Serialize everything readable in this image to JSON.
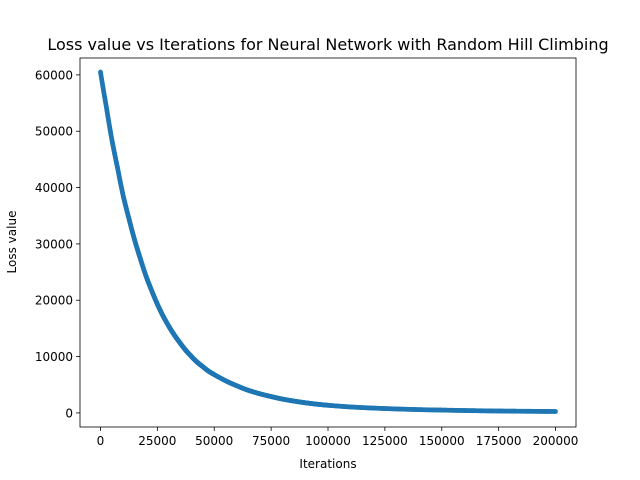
{
  "chart_data": {
    "type": "scatter",
    "title": "Loss value vs Iterations for Neural Network with Random Hill Climbing",
    "xlabel": "Iterations",
    "ylabel": "Loss value",
    "xlim": [
      -9000,
      209000
    ],
    "ylim": [
      -2500,
      63000
    ],
    "grid": false,
    "legend": "none",
    "marker_color": "#1f77b4",
    "x_ticks": [
      0,
      25000,
      50000,
      75000,
      100000,
      125000,
      150000,
      175000,
      200000
    ],
    "x_tick_labels": [
      "0",
      "25000",
      "50000",
      "75000",
      "100000",
      "125000",
      "150000",
      "175000",
      "200000"
    ],
    "y_ticks": [
      0,
      10000,
      20000,
      30000,
      40000,
      50000,
      60000
    ],
    "y_tick_labels": [
      "0",
      "10000",
      "20000",
      "30000",
      "40000",
      "50000",
      "60000"
    ],
    "series": [
      {
        "x": [
          0,
          2500,
          5000,
          7500,
          10000,
          12500,
          15000,
          17500,
          20000,
          22500,
          25000,
          27500,
          30000,
          32500,
          35000,
          37500,
          40000,
          42500,
          45000,
          47500,
          50000,
          55000,
          60000,
          65000,
          70000,
          75000,
          80000,
          85000,
          90000,
          95000,
          100000,
          110000,
          120000,
          130000,
          140000,
          150000,
          160000,
          170000,
          180000,
          190000,
          200000
        ],
        "y": [
          60500,
          54500,
          48500,
          43500,
          38500,
          34500,
          30700,
          27400,
          24300,
          21700,
          19300,
          17200,
          15400,
          13800,
          12400,
          11100,
          10000,
          9000,
          8200,
          7400,
          6800,
          5700,
          4800,
          4000,
          3400,
          2900,
          2450,
          2100,
          1800,
          1550,
          1350,
          1050,
          850,
          700,
          580,
          500,
          420,
          360,
          310,
          280,
          250
        ]
      }
    ]
  }
}
